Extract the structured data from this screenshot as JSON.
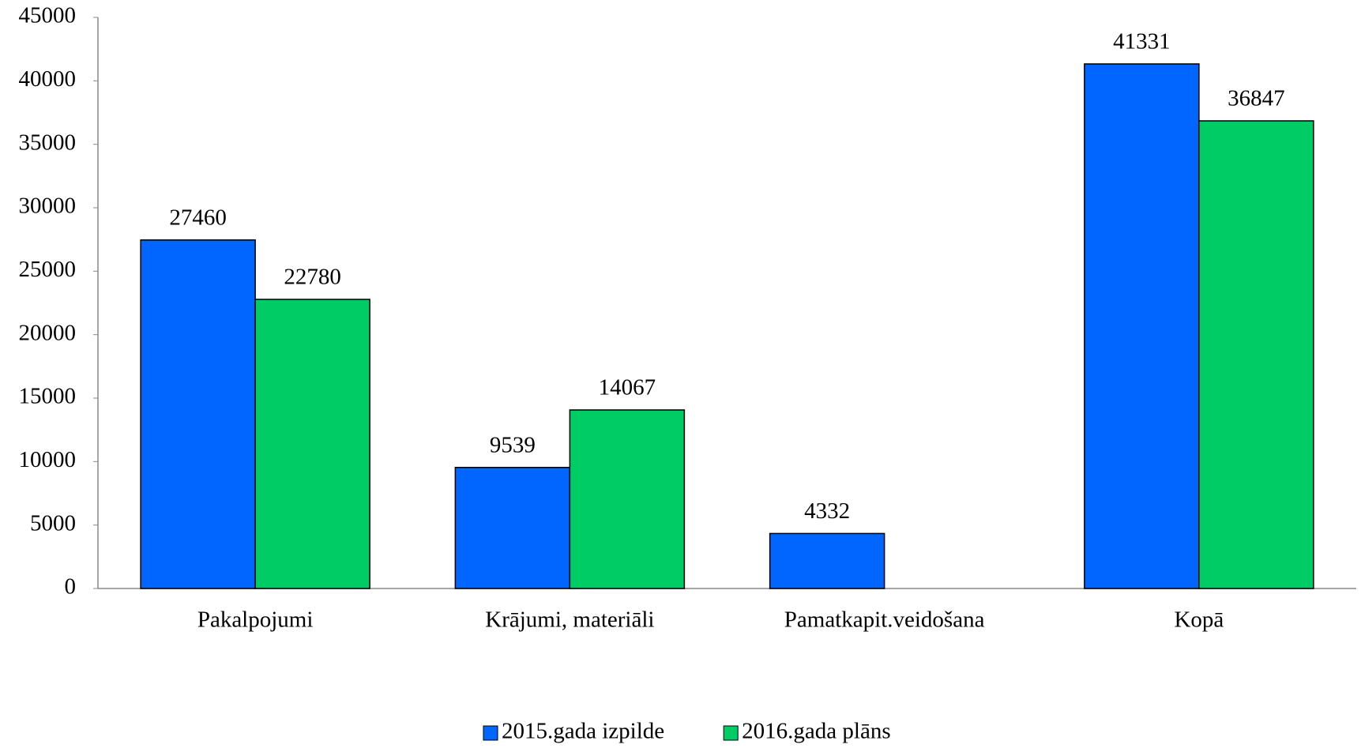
{
  "chart_data": {
    "type": "bar",
    "categories": [
      "Pakalpojumi",
      "Krājumi, materiāli",
      "Pamatkapit.veidošana",
      "Kopā"
    ],
    "series": [
      {
        "name": "2015.gada izpilde",
        "color": "#0066ff",
        "values": [
          27460,
          9539,
          4332,
          41331
        ]
      },
      {
        "name": "2016.gada plāns",
        "color": "#00cc66",
        "values": [
          22780,
          14067,
          null,
          36847
        ]
      }
    ],
    "ylim": [
      0,
      45000
    ],
    "yticks": [
      0,
      5000,
      10000,
      15000,
      20000,
      25000,
      30000,
      35000,
      40000,
      45000
    ],
    "grid": false,
    "legend": "bottom"
  }
}
